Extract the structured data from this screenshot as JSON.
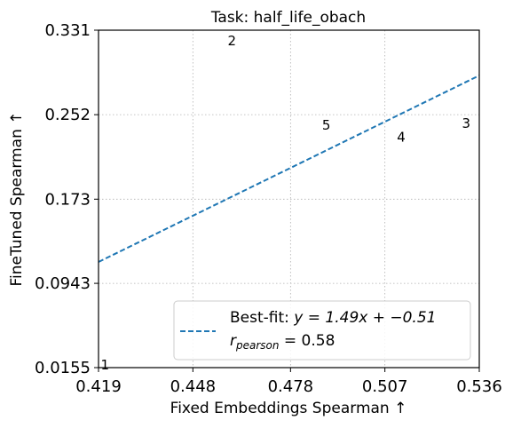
{
  "chart_data": {
    "type": "scatter",
    "title": "Task: half_life_obach",
    "xlabel": "Fixed Embeddings Spearman ↑",
    "ylabel": "FineTuned Spearman ↑",
    "xlim": [
      0.419,
      0.536
    ],
    "ylim": [
      0.0155,
      0.331
    ],
    "xticks": [
      "0.419",
      "0.448",
      "0.478",
      "0.507",
      "0.536"
    ],
    "yticks": [
      "0.0155",
      "0.0943",
      "0.173",
      "0.252",
      "0.331"
    ],
    "grid": true,
    "grid_style": "dotted",
    "legend_position": "lower-right",
    "points": [
      {
        "label": "1",
        "x": 0.421,
        "y": 0.018
      },
      {
        "label": "2",
        "x": 0.46,
        "y": 0.321
      },
      {
        "label": "3",
        "x": 0.532,
        "y": 0.244
      },
      {
        "label": "4",
        "x": 0.512,
        "y": 0.231
      },
      {
        "label": "5",
        "x": 0.489,
        "y": 0.242
      }
    ],
    "fit": {
      "slope": 1.49,
      "intercept": -0.51,
      "legend_line1_prefix": "Best-fit: ",
      "legend_line1_math": "y = 1.49x + −0.51",
      "legend_line2_r": "r",
      "legend_line2_sub": "pearson",
      "legend_line2_rest": " = 0.58",
      "color": "#1f77b4"
    }
  }
}
